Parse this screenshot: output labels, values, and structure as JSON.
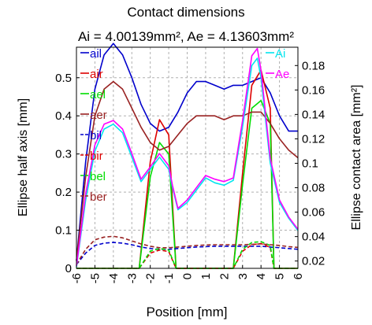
{
  "chart_data": {
    "type": "line",
    "title": "Contact dimensions",
    "subtitle": "Ai = 4.00139mm², Ae = 4.13603mm²",
    "xlabel": "Position [mm]",
    "ylabel_left": "Ellipse half axis [mm]",
    "ylabel_right": "Ellipse contact area [mm²]",
    "xlim": [
      -6,
      6
    ],
    "ylim_left": [
      0,
      0.58
    ],
    "ylim_right": [
      0.014,
      0.195
    ],
    "xticks": [
      "-6",
      "-5",
      "-4",
      "-3",
      "-2",
      "-1",
      "0",
      "1",
      "2",
      "3",
      "4",
      "5",
      "6"
    ],
    "yticks_left": [
      "0",
      "0.1",
      "0.2",
      "0.3",
      "0.4",
      "0.5"
    ],
    "yticks_right": [
      "0.02",
      "0.04",
      "0.06",
      "0.08",
      "0.1",
      "0.12",
      "0.14",
      "0.16",
      "0.18"
    ],
    "grid": true,
    "legend_left_position": "top-left",
    "legend_right_position": "top-right",
    "series": [
      {
        "name": "ail",
        "axis": "left",
        "color": "#0000cc",
        "dash": "solid",
        "x": [
          -6.0,
          -5.5,
          -5.0,
          -4.5,
          -4.0,
          -3.5,
          -3.0,
          -2.5,
          -2.0,
          -1.5,
          -1.0,
          -0.5,
          0.0,
          0.5,
          1.0,
          1.5,
          2.0,
          2.5,
          3.0,
          3.5,
          4.0,
          4.5,
          5.0,
          5.5,
          6.0
        ],
        "y": [
          0.02,
          0.28,
          0.47,
          0.56,
          0.59,
          0.56,
          0.5,
          0.43,
          0.38,
          0.36,
          0.37,
          0.41,
          0.46,
          0.49,
          0.49,
          0.48,
          0.47,
          0.48,
          0.48,
          0.49,
          0.5,
          0.46,
          0.4,
          0.36,
          0.36
        ]
      },
      {
        "name": "air",
        "axis": "left",
        "color": "#dd0000",
        "dash": "solid",
        "x": [
          -6.0,
          -5.5,
          -2.6,
          -2.0,
          -1.5,
          -1.0,
          -0.6,
          -0.3,
          2.5,
          3.0,
          3.5,
          4.0,
          4.5,
          4.7,
          6.0
        ],
        "y": [
          0.0,
          0.0,
          0.0,
          0.28,
          0.39,
          0.35,
          0.0,
          0.0,
          0.0,
          0.25,
          0.48,
          0.52,
          0.42,
          0.0,
          0.0
        ]
      },
      {
        "name": "ael",
        "axis": "left",
        "color": "#00dd00",
        "dash": "solid",
        "x": [
          -6.0,
          -5.5,
          -2.6,
          -2.0,
          -1.5,
          -1.0,
          -0.6,
          -0.3,
          2.5,
          3.0,
          3.5,
          4.0,
          4.5,
          4.7,
          6.0
        ],
        "y": [
          0.0,
          0.0,
          0.0,
          0.24,
          0.33,
          0.3,
          0.0,
          0.0,
          0.0,
          0.22,
          0.42,
          0.44,
          0.38,
          0.0,
          0.0
        ]
      },
      {
        "name": "aer",
        "axis": "left",
        "color": "#992222",
        "dash": "solid",
        "x": [
          -6.0,
          -5.5,
          -5.0,
          -4.5,
          -4.0,
          -3.5,
          -3.0,
          -2.5,
          -2.0,
          -1.5,
          -1.0,
          -0.5,
          0.0,
          0.5,
          1.0,
          1.5,
          2.0,
          2.5,
          3.0,
          3.5,
          4.0,
          4.5,
          5.0,
          5.5,
          6.0
        ],
        "y": [
          0.02,
          0.24,
          0.4,
          0.47,
          0.49,
          0.47,
          0.42,
          0.37,
          0.33,
          0.31,
          0.32,
          0.35,
          0.38,
          0.4,
          0.4,
          0.4,
          0.39,
          0.4,
          0.4,
          0.41,
          0.41,
          0.38,
          0.34,
          0.31,
          0.29
        ]
      },
      {
        "name": "bil",
        "axis": "left",
        "color": "#0000cc",
        "dash": "dashed",
        "x": [
          -6.0,
          -5.5,
          -5.0,
          -4.5,
          -4.0,
          -3.5,
          -3.0,
          -2.5,
          -2.0,
          -1.5,
          -1.0,
          -0.5,
          0.0,
          0.5,
          1.0,
          1.5,
          2.0,
          2.5,
          3.0,
          3.5,
          4.0,
          4.5,
          5.0,
          5.5,
          6.0
        ],
        "y": [
          0.01,
          0.04,
          0.06,
          0.066,
          0.068,
          0.066,
          0.062,
          0.056,
          0.052,
          0.05,
          0.05,
          0.052,
          0.054,
          0.056,
          0.057,
          0.058,
          0.058,
          0.058,
          0.058,
          0.058,
          0.058,
          0.056,
          0.054,
          0.052,
          0.05
        ]
      },
      {
        "name": "bir",
        "axis": "left",
        "color": "#dd0000",
        "dash": "dashed",
        "x": [
          -6.0,
          -5.5,
          -2.6,
          -2.0,
          -1.5,
          -1.0,
          -0.6,
          -0.3,
          2.5,
          3.0,
          3.5,
          4.0,
          4.5,
          4.7,
          6.0
        ],
        "y": [
          0.0,
          0.0,
          0.0,
          0.04,
          0.048,
          0.044,
          0.0,
          0.0,
          0.0,
          0.045,
          0.062,
          0.065,
          0.055,
          0.0,
          0.0
        ]
      },
      {
        "name": "bel",
        "axis": "left",
        "color": "#00dd00",
        "dash": "dashed",
        "x": [
          -6.0,
          -5.5,
          -2.6,
          -2.0,
          -1.5,
          -1.0,
          -0.6,
          -0.3,
          2.5,
          3.0,
          3.5,
          4.0,
          4.5,
          4.7,
          6.0
        ],
        "y": [
          0.0,
          0.0,
          0.0,
          0.045,
          0.052,
          0.048,
          0.0,
          0.0,
          0.0,
          0.05,
          0.068,
          0.07,
          0.06,
          0.0,
          0.0
        ]
      },
      {
        "name": "ber",
        "axis": "left",
        "color": "#992222",
        "dash": "dashed",
        "x": [
          -6.0,
          -5.5,
          -5.0,
          -4.5,
          -4.0,
          -3.5,
          -3.0,
          -2.5,
          -2.0,
          -1.5,
          -1.0,
          -0.5,
          0.0,
          0.5,
          1.0,
          1.5,
          2.0,
          2.5,
          3.0,
          3.5,
          4.0,
          4.5,
          5.0,
          5.5,
          6.0
        ],
        "y": [
          0.01,
          0.05,
          0.075,
          0.082,
          0.084,
          0.08,
          0.072,
          0.064,
          0.058,
          0.054,
          0.054,
          0.056,
          0.058,
          0.06,
          0.061,
          0.062,
          0.062,
          0.062,
          0.062,
          0.063,
          0.064,
          0.062,
          0.06,
          0.057,
          0.055
        ]
      },
      {
        "name": "Ai",
        "axis": "right",
        "color": "#00e5ee",
        "dash": "solid",
        "x": [
          -6.0,
          -5.5,
          -5.0,
          -4.5,
          -4.0,
          -3.5,
          -3.0,
          -2.5,
          -2.0,
          -1.5,
          -1.0,
          -0.8,
          -0.5,
          0.0,
          0.5,
          1.0,
          1.5,
          2.0,
          2.5,
          3.0,
          3.5,
          3.8,
          4.0,
          4.5,
          5.0,
          5.5,
          6.0
        ],
        "y": [
          0.015,
          0.07,
          0.11,
          0.128,
          0.132,
          0.125,
          0.105,
          0.085,
          0.095,
          0.105,
          0.095,
          0.08,
          0.062,
          0.068,
          0.078,
          0.088,
          0.084,
          0.082,
          0.086,
          0.13,
          0.18,
          0.186,
          0.17,
          0.1,
          0.068,
          0.055,
          0.045
        ]
      },
      {
        "name": "Ae",
        "axis": "right",
        "color": "#ff00ff",
        "dash": "solid",
        "x": [
          -6.0,
          -5.5,
          -5.0,
          -4.5,
          -4.0,
          -3.5,
          -3.0,
          -2.5,
          -2.0,
          -1.5,
          -1.0,
          -0.8,
          -0.5,
          0.0,
          0.5,
          1.0,
          1.5,
          2.0,
          2.5,
          3.0,
          3.5,
          3.8,
          4.0,
          4.5,
          5.0,
          5.5,
          6.0
        ],
        "y": [
          0.016,
          0.075,
          0.115,
          0.132,
          0.135,
          0.128,
          0.108,
          0.087,
          0.097,
          0.108,
          0.098,
          0.082,
          0.063,
          0.07,
          0.08,
          0.09,
          0.087,
          0.085,
          0.088,
          0.135,
          0.188,
          0.194,
          0.176,
          0.104,
          0.07,
          0.056,
          0.046
        ]
      }
    ]
  }
}
